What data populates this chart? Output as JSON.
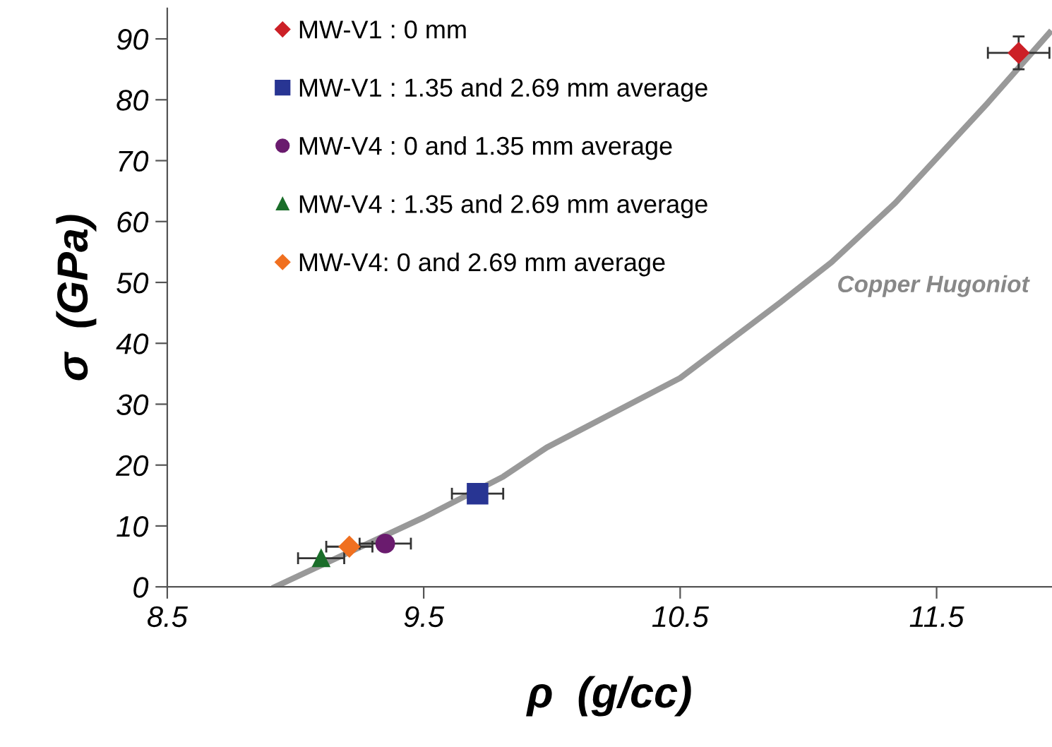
{
  "chart_data": {
    "type": "scatter",
    "xlabel": "ρ  (g/cc)",
    "ylabel": "σ  (GPa)",
    "xlim": [
      8.5,
      11.95
    ],
    "xticks": [
      8.5,
      9.5,
      10.5,
      11.5
    ],
    "ylim": [
      0,
      95
    ],
    "yticks": [
      0,
      10,
      20,
      30,
      40,
      50,
      60,
      70,
      80,
      90
    ],
    "grid": false,
    "legend": "top left",
    "series": [
      {
        "name": "MW-V1 : 0 mm",
        "color": "#cc2027",
        "marker": "diamond",
        "x": [
          11.82
        ],
        "values": [
          87.7
        ],
        "xerrors": [
          0.12
        ],
        "errors": [
          2.7
        ]
      },
      {
        "name": "MW-V1 : 1.35 and 2.69 mm average",
        "color": "#283593",
        "marker": "square",
        "x": [
          9.71
        ],
        "values": [
          15.3
        ],
        "xerrors": [
          0.1
        ]
      },
      {
        "name": "MW-V4 : 0 and 1.35 mm average",
        "color": "#6a1b6e",
        "marker": "circle",
        "x": [
          9.35
        ],
        "values": [
          7.1
        ],
        "xerrors": [
          0.1
        ]
      },
      {
        "name": "MW-V4 : 1.35 and 2.69 mm average",
        "color": "#1b6e2a",
        "marker": "triangle",
        "x": [
          9.1
        ],
        "values": [
          4.7
        ],
        "xerrors": [
          0.09
        ]
      },
      {
        "name": "MW-V4: 0 and 2.69 mm average",
        "color": "#f07020",
        "marker": "diamond",
        "x": [
          9.21
        ],
        "values": [
          6.6
        ],
        "xerrors": [
          0.09
        ]
      },
      {
        "type": "line",
        "color": "#999999",
        "marker": "none",
        "x": [
          8.92,
          9.5,
          9.81,
          9.98,
          10.5,
          10.89,
          11.09,
          11.34,
          11.7,
          11.94
        ],
        "values": [
          0,
          11.4,
          18.1,
          22.9,
          34.3,
          46.7,
          53.3,
          63.1,
          79.5,
          91
        ]
      }
    ],
    "annotations": [
      "Copper Hugoniot"
    ]
  }
}
